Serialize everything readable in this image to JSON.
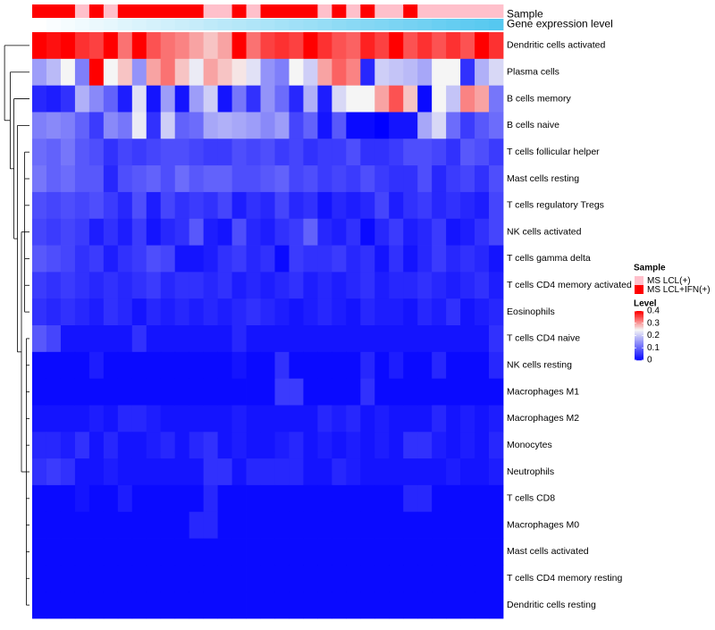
{
  "chart_data": {
    "type": "heatmap",
    "annotation_tracks": [
      {
        "name": "Sample",
        "values": [
          "IFN",
          "IFN",
          "IFN",
          "LCL",
          "IFN",
          "LCL",
          "IFN",
          "IFN",
          "IFN",
          "IFN",
          "IFN",
          "IFN",
          "LCL",
          "LCL",
          "IFN",
          "LCL",
          "IFN",
          "IFN",
          "IFN",
          "IFN",
          "LCL",
          "IFN",
          "LCL",
          "IFN",
          "LCL",
          "LCL",
          "IFN",
          "LCL",
          "LCL",
          "LCL",
          "LCL",
          "LCL",
          "LCL"
        ]
      },
      {
        "name": "Gene expression level",
        "values": [
          0.0,
          0.03,
          0.06,
          0.09,
          0.12,
          0.15,
          0.19,
          0.22,
          0.25,
          0.28,
          0.31,
          0.34,
          0.38,
          0.41,
          0.44,
          0.47,
          0.5,
          0.53,
          0.56,
          0.59,
          0.62,
          0.66,
          0.69,
          0.72,
          0.75,
          0.78,
          0.81,
          0.84,
          0.88,
          0.91,
          0.94,
          0.97,
          1.0
        ]
      }
    ],
    "rows": [
      "Dendritic cells activated",
      "Plasma cells",
      "B cells memory",
      "B cells naive",
      "T cells follicular helper",
      "Mast cells resting",
      "T cells regulatory  Tregs",
      "NK cells activated",
      "T cells gamma delta",
      "T cells CD4 memory activated",
      "Eosinophils",
      "T cells CD4 naive",
      "NK cells resting",
      "Macrophages M1",
      "Macrophages M2",
      "Monocytes",
      "Neutrophils",
      "T cells CD8",
      "Macrophages M0",
      "Mast cells activated",
      "T cells CD4 memory resting",
      "Dendritic cells resting"
    ],
    "columns_count": 33,
    "values": [
      [
        0.4,
        0.39,
        0.4,
        0.37,
        0.36,
        0.4,
        0.33,
        0.4,
        0.35,
        0.33,
        0.32,
        0.3,
        0.28,
        0.3,
        0.4,
        0.33,
        0.36,
        0.37,
        0.36,
        0.4,
        0.37,
        0.35,
        0.34,
        0.38,
        0.36,
        0.4,
        0.35,
        0.37,
        0.35,
        0.37,
        0.35,
        0.4,
        0.37
      ],
      [
        0.16,
        0.19,
        0.25,
        0.13,
        0.4,
        0.25,
        0.28,
        0.15,
        0.3,
        0.33,
        0.28,
        0.24,
        0.3,
        0.28,
        0.26,
        0.23,
        0.15,
        0.13,
        0.25,
        0.21,
        0.3,
        0.34,
        0.32,
        0.04,
        0.21,
        0.2,
        0.19,
        0.17,
        0.25,
        0.25,
        0.05,
        0.18,
        0.22
      ],
      [
        0.04,
        0.03,
        0.05,
        0.18,
        0.14,
        0.1,
        0.03,
        0.23,
        0.02,
        0.16,
        0.02,
        0.16,
        0.21,
        0.02,
        0.12,
        0.05,
        0.15,
        0.11,
        0.04,
        0.18,
        0.03,
        0.22,
        0.25,
        0.25,
        0.3,
        0.35,
        0.28,
        0.01,
        0.25,
        0.2,
        0.32,
        0.3,
        0.12
      ],
      [
        0.13,
        0.14,
        0.13,
        0.1,
        0.06,
        0.14,
        0.12,
        0.24,
        0.05,
        0.21,
        0.1,
        0.11,
        0.17,
        0.18,
        0.17,
        0.16,
        0.14,
        0.16,
        0.07,
        0.1,
        0.02,
        0.09,
        0.01,
        0.01,
        0.0,
        0.02,
        0.02,
        0.17,
        0.22,
        0.11,
        0.06,
        0.09,
        0.11
      ],
      [
        0.11,
        0.1,
        0.12,
        0.09,
        0.08,
        0.05,
        0.07,
        0.06,
        0.07,
        0.08,
        0.08,
        0.07,
        0.06,
        0.06,
        0.08,
        0.07,
        0.08,
        0.06,
        0.07,
        0.05,
        0.06,
        0.06,
        0.08,
        0.05,
        0.05,
        0.06,
        0.08,
        0.08,
        0.07,
        0.05,
        0.09,
        0.08,
        0.06
      ],
      [
        0.12,
        0.1,
        0.11,
        0.09,
        0.09,
        0.04,
        0.08,
        0.09,
        0.1,
        0.08,
        0.11,
        0.09,
        0.1,
        0.1,
        0.08,
        0.08,
        0.09,
        0.1,
        0.07,
        0.08,
        0.06,
        0.07,
        0.06,
        0.08,
        0.06,
        0.05,
        0.05,
        0.08,
        0.04,
        0.06,
        0.07,
        0.05,
        0.08
      ],
      [
        0.08,
        0.07,
        0.08,
        0.07,
        0.08,
        0.06,
        0.04,
        0.08,
        0.03,
        0.07,
        0.05,
        0.06,
        0.05,
        0.07,
        0.03,
        0.05,
        0.04,
        0.07,
        0.04,
        0.05,
        0.02,
        0.04,
        0.03,
        0.04,
        0.07,
        0.03,
        0.05,
        0.06,
        0.04,
        0.05,
        0.04,
        0.03,
        0.07
      ],
      [
        0.07,
        0.06,
        0.07,
        0.06,
        0.03,
        0.05,
        0.03,
        0.06,
        0.02,
        0.04,
        0.05,
        0.09,
        0.03,
        0.02,
        0.08,
        0.04,
        0.03,
        0.05,
        0.06,
        0.1,
        0.04,
        0.03,
        0.05,
        0.01,
        0.04,
        0.06,
        0.03,
        0.04,
        0.06,
        0.02,
        0.03,
        0.05,
        0.07
      ],
      [
        0.09,
        0.08,
        0.07,
        0.05,
        0.06,
        0.03,
        0.05,
        0.06,
        0.08,
        0.07,
        0.02,
        0.02,
        0.03,
        0.05,
        0.06,
        0.04,
        0.05,
        0.01,
        0.06,
        0.05,
        0.05,
        0.06,
        0.04,
        0.05,
        0.02,
        0.05,
        0.02,
        0.04,
        0.06,
        0.04,
        0.05,
        0.04,
        0.02
      ],
      [
        0.06,
        0.05,
        0.06,
        0.05,
        0.04,
        0.05,
        0.04,
        0.05,
        0.06,
        0.04,
        0.05,
        0.05,
        0.04,
        0.05,
        0.03,
        0.04,
        0.03,
        0.04,
        0.05,
        0.03,
        0.04,
        0.03,
        0.04,
        0.05,
        0.03,
        0.04,
        0.04,
        0.05,
        0.04,
        0.03,
        0.04,
        0.05,
        0.03
      ],
      [
        0.05,
        0.04,
        0.05,
        0.04,
        0.03,
        0.05,
        0.04,
        0.02,
        0.04,
        0.03,
        0.04,
        0.03,
        0.04,
        0.03,
        0.04,
        0.05,
        0.04,
        0.03,
        0.02,
        0.03,
        0.04,
        0.03,
        0.02,
        0.04,
        0.03,
        0.03,
        0.02,
        0.04,
        0.03,
        0.05,
        0.02,
        0.03,
        0.04
      ],
      [
        0.09,
        0.07,
        0.02,
        0.02,
        0.02,
        0.02,
        0.02,
        0.05,
        0.02,
        0.02,
        0.02,
        0.02,
        0.02,
        0.02,
        0.04,
        0.02,
        0.02,
        0.02,
        0.02,
        0.02,
        0.02,
        0.02,
        0.02,
        0.02,
        0.02,
        0.02,
        0.02,
        0.02,
        0.02,
        0.02,
        0.02,
        0.02,
        0.05
      ],
      [
        0.01,
        0.01,
        0.01,
        0.01,
        0.03,
        0.01,
        0.01,
        0.01,
        0.01,
        0.01,
        0.01,
        0.01,
        0.01,
        0.01,
        0.02,
        0.01,
        0.01,
        0.05,
        0.01,
        0.01,
        0.01,
        0.01,
        0.01,
        0.04,
        0.01,
        0.03,
        0.01,
        0.01,
        0.04,
        0.01,
        0.01,
        0.01,
        0.04
      ],
      [
        0.01,
        0.01,
        0.01,
        0.01,
        0.01,
        0.01,
        0.01,
        0.01,
        0.01,
        0.01,
        0.01,
        0.01,
        0.01,
        0.01,
        0.01,
        0.01,
        0.01,
        0.06,
        0.06,
        0.01,
        0.01,
        0.01,
        0.01,
        0.05,
        0.01,
        0.01,
        0.01,
        0.01,
        0.01,
        0.01,
        0.01,
        0.01,
        0.01
      ],
      [
        0.02,
        0.02,
        0.02,
        0.02,
        0.03,
        0.02,
        0.04,
        0.04,
        0.03,
        0.02,
        0.02,
        0.02,
        0.02,
        0.02,
        0.03,
        0.02,
        0.02,
        0.02,
        0.02,
        0.02,
        0.04,
        0.03,
        0.04,
        0.02,
        0.03,
        0.02,
        0.02,
        0.02,
        0.04,
        0.02,
        0.03,
        0.02,
        0.03
      ],
      [
        0.04,
        0.04,
        0.03,
        0.05,
        0.02,
        0.04,
        0.02,
        0.02,
        0.03,
        0.04,
        0.02,
        0.04,
        0.05,
        0.02,
        0.03,
        0.02,
        0.02,
        0.03,
        0.04,
        0.02,
        0.03,
        0.02,
        0.03,
        0.02,
        0.03,
        0.02,
        0.05,
        0.05,
        0.03,
        0.02,
        0.03,
        0.02,
        0.04
      ],
      [
        0.05,
        0.06,
        0.05,
        0.02,
        0.02,
        0.03,
        0.02,
        0.02,
        0.02,
        0.02,
        0.02,
        0.02,
        0.05,
        0.05,
        0.02,
        0.04,
        0.04,
        0.04,
        0.04,
        0.02,
        0.02,
        0.04,
        0.03,
        0.02,
        0.02,
        0.02,
        0.02,
        0.02,
        0.02,
        0.03,
        0.02,
        0.02,
        0.03
      ],
      [
        0.01,
        0.01,
        0.01,
        0.02,
        0.01,
        0.01,
        0.03,
        0.01,
        0.01,
        0.01,
        0.01,
        0.01,
        0.04,
        0.01,
        0.01,
        0.01,
        0.01,
        0.01,
        0.01,
        0.01,
        0.01,
        0.01,
        0.01,
        0.01,
        0.01,
        0.01,
        0.04,
        0.04,
        0.01,
        0.01,
        0.01,
        0.01,
        0.01
      ],
      [
        0.01,
        0.01,
        0.01,
        0.01,
        0.01,
        0.01,
        0.01,
        0.01,
        0.01,
        0.01,
        0.01,
        0.04,
        0.04,
        0.01,
        0.01,
        0.01,
        0.01,
        0.01,
        0.01,
        0.01,
        0.01,
        0.01,
        0.01,
        0.01,
        0.01,
        0.01,
        0.01,
        0.01,
        0.01,
        0.01,
        0.01,
        0.01,
        0.01
      ],
      [
        0.01,
        0.01,
        0.01,
        0.01,
        0.01,
        0.01,
        0.01,
        0.01,
        0.01,
        0.01,
        0.01,
        0.01,
        0.01,
        0.01,
        0.01,
        0.01,
        0.01,
        0.01,
        0.01,
        0.01,
        0.01,
        0.01,
        0.01,
        0.01,
        0.01,
        0.01,
        0.01,
        0.01,
        0.01,
        0.01,
        0.01,
        0.01,
        0.01
      ],
      [
        0.01,
        0.01,
        0.01,
        0.01,
        0.01,
        0.01,
        0.01,
        0.01,
        0.01,
        0.01,
        0.01,
        0.01,
        0.01,
        0.01,
        0.01,
        0.01,
        0.01,
        0.01,
        0.01,
        0.01,
        0.01,
        0.01,
        0.01,
        0.01,
        0.01,
        0.01,
        0.01,
        0.01,
        0.01,
        0.01,
        0.01,
        0.01,
        0.01
      ],
      [
        0.01,
        0.01,
        0.01,
        0.01,
        0.01,
        0.01,
        0.01,
        0.01,
        0.01,
        0.01,
        0.01,
        0.01,
        0.01,
        0.01,
        0.01,
        0.01,
        0.01,
        0.01,
        0.01,
        0.01,
        0.01,
        0.01,
        0.01,
        0.01,
        0.01,
        0.01,
        0.01,
        0.01,
        0.01,
        0.01,
        0.01,
        0.01,
        0.01
      ]
    ],
    "color_scale": {
      "min": 0,
      "mid": 0.25,
      "max": 0.4,
      "low_color": "#0000ff",
      "mid_color": "#f5f5f5",
      "high_color": "#ff0000"
    },
    "legends": {
      "sample": {
        "title": "Sample",
        "entries": [
          {
            "key": "LCL",
            "label": "MS LCL(+)",
            "color": "#ffc0cb"
          },
          {
            "key": "IFN",
            "label": "MS LCL+IFN(+)",
            "color": "#ff0000"
          }
        ]
      },
      "level": {
        "title": "Level",
        "ticks": [
          {
            "value": 0.4,
            "label": "0.4"
          },
          {
            "value": 0.3,
            "label": "0.3"
          },
          {
            "value": 0.2,
            "label": "0.2"
          },
          {
            "value": 0.1,
            "label": "0.1"
          },
          {
            "value": 0,
            "label": "0"
          }
        ]
      }
    },
    "track_colors": {
      "gene_low": "#ffffff",
      "gene_high": "#56c8f0"
    }
  }
}
